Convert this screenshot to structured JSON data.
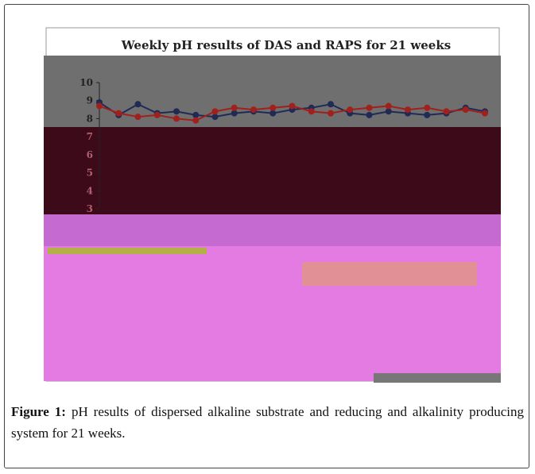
{
  "figure": {
    "chart_data": {
      "type": "line",
      "title": "Weekly pH results of DAS and RAPS for 21 weeks",
      "ylim": [
        3,
        10
      ],
      "yticks": [
        3,
        4,
        5,
        6,
        7,
        8,
        9,
        10
      ],
      "series": [
        {
          "color": "#1f2a55",
          "values": [
            8.9,
            8.2,
            8.8,
            8.3,
            8.4,
            8.2,
            8.1,
            8.3,
            8.4,
            8.3,
            8.5,
            8.6,
            8.8,
            8.3,
            8.2,
            8.4,
            8.3,
            8.2,
            8.3,
            8.6,
            8.4
          ]
        },
        {
          "color": "#a0201c",
          "values": [
            8.7,
            8.3,
            8.1,
            8.2,
            8.0,
            7.9,
            8.4,
            8.6,
            8.5,
            8.6,
            8.7,
            8.4,
            8.3,
            8.5,
            8.6,
            8.7,
            8.5,
            8.6,
            8.4,
            8.5,
            8.3
          ]
        }
      ]
    },
    "caption": {
      "label": "Figure 1:",
      "text": "pH results of dispersed alkaline substrate and reducing and alkalinity producing system for 21 weeks."
    }
  }
}
